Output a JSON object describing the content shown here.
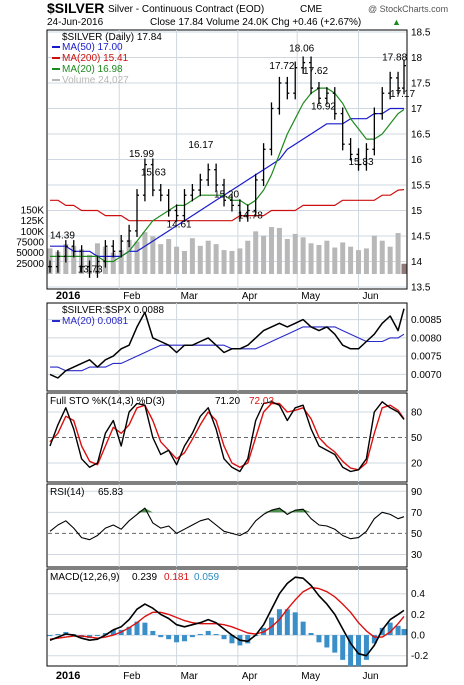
{
  "header": {
    "symbol": "$SILVER",
    "name": "Silver - Continuous Contract (EOD)",
    "exchange": "CME",
    "watermark": "@ StockCharts.com",
    "date": "24-Jun-2016",
    "stats": "Close 17.84  Volume 24.0K  Chg +0.46 (+2.67%)",
    "stats_arrow": "▲"
  },
  "colors": {
    "price": "#000000",
    "ma50": "#1a1acc",
    "ma200": "#cc1010",
    "ma20": "#1f8a1f",
    "volume": "#b8b8b8",
    "ratio": "#000000",
    "ratio_ma": "#2a2ac8",
    "sto_k": "#000000",
    "sto_d": "#dd1010",
    "rsi": "#000000",
    "rsi_fill": "#2e7d2e",
    "macd": "#000000",
    "signal": "#dd1010",
    "hist": "#3a8fc8",
    "grid": "#cfd8e0"
  },
  "chart_data": {
    "type": "line",
    "x_months": [
      "2016",
      "Feb",
      "Mar",
      "Apr",
      "May",
      "Jun"
    ],
    "dates": [
      "2015-12-28",
      "2016-01-01",
      "2016-01-05",
      "2016-01-09",
      "2016-01-13",
      "2016-01-17",
      "2016-01-21",
      "2016-01-25",
      "2016-01-29",
      "2016-02-02",
      "2016-02-06",
      "2016-02-10",
      "2016-02-14",
      "2016-02-18",
      "2016-02-22",
      "2016-02-26",
      "2016-03-01",
      "2016-03-05",
      "2016-03-09",
      "2016-03-13",
      "2016-03-17",
      "2016-03-21",
      "2016-03-25",
      "2016-03-29",
      "2016-04-02",
      "2016-04-06",
      "2016-04-10",
      "2016-04-14",
      "2016-04-18",
      "2016-04-22",
      "2016-04-26",
      "2016-04-30",
      "2016-05-04",
      "2016-05-08",
      "2016-05-12",
      "2016-05-16",
      "2016-05-20",
      "2016-05-24",
      "2016-05-28",
      "2016-06-01",
      "2016-06-05",
      "2016-06-09",
      "2016-06-13",
      "2016-06-17",
      "2016-06-21",
      "2016-06-24"
    ],
    "price_panel": {
      "title": "$SILVER (Daily) 17.84",
      "ylim": [
        13.5,
        18.5
      ],
      "yticks": [
        13.5,
        14.0,
        14.5,
        15.0,
        15.5,
        16.0,
        16.5,
        17.0,
        17.5,
        18.0,
        18.5
      ],
      "close": [
        13.9,
        14.1,
        14.3,
        14.2,
        13.9,
        13.8,
        14.0,
        14.3,
        14.2,
        14.4,
        14.6,
        15.3,
        15.9,
        15.4,
        15.3,
        15.0,
        14.9,
        15.3,
        15.4,
        15.6,
        15.8,
        15.5,
        15.2,
        15.1,
        14.9,
        15.0,
        15.6,
        16.2,
        17.0,
        17.5,
        17.3,
        17.8,
        17.9,
        17.4,
        17.2,
        17.3,
        16.9,
        16.3,
        16.1,
        15.9,
        16.2,
        16.9,
        17.3,
        17.6,
        17.4,
        17.84
      ],
      "annotations": [
        {
          "label": "14.39",
          "x": "2016-01-02",
          "y": 14.39
        },
        {
          "label": "13.73",
          "x": "2016-01-16",
          "y": 13.73
        },
        {
          "label": "15.99",
          "x": "2016-02-11",
          "y": 15.99
        },
        {
          "label": "15.63",
          "x": "2016-02-17",
          "y": 15.63
        },
        {
          "label": "14.61",
          "x": "2016-03-01",
          "y": 14.61
        },
        {
          "label": "16.17",
          "x": "2016-03-12",
          "y": 16.17
        },
        {
          "label": "15.20",
          "x": "2016-03-25",
          "y": 15.2
        },
        {
          "label": "14.78",
          "x": "2016-04-06",
          "y": 14.78
        },
        {
          "label": "17.72",
          "x": "2016-04-22",
          "y": 17.72
        },
        {
          "label": "18.06",
          "x": "2016-05-02",
          "y": 18.06
        },
        {
          "label": "17.62",
          "x": "2016-05-09",
          "y": 17.62
        },
        {
          "label": "16.92",
          "x": "2016-05-13",
          "y": 16.92
        },
        {
          "label": "15.83",
          "x": "2016-06-01",
          "y": 15.83
        },
        {
          "label": "17.88",
          "x": "2016-06-18",
          "y": 17.88
        },
        {
          "label": "17.17",
          "x": "2016-06-22",
          "y": 17.17
        }
      ],
      "legend": [
        {
          "label": "MA(50) 17.00",
          "color": "#1a1acc"
        },
        {
          "label": "MA(200) 15.41",
          "color": "#cc1010"
        },
        {
          "label": "MA(20) 16.98",
          "color": "#1f8a1f"
        },
        {
          "label": "Volume 24,027",
          "color": "#b8b8b8"
        }
      ],
      "ma50": [
        14.3,
        14.3,
        14.3,
        14.2,
        14.2,
        14.2,
        14.1,
        14.1,
        14.1,
        14.1,
        14.2,
        14.2,
        14.3,
        14.4,
        14.5,
        14.6,
        14.7,
        14.8,
        14.9,
        15.0,
        15.1,
        15.2,
        15.3,
        15.4,
        15.5,
        15.6,
        15.7,
        15.8,
        15.9,
        16.0,
        16.2,
        16.3,
        16.4,
        16.5,
        16.6,
        16.7,
        16.7,
        16.7,
        16.8,
        16.8,
        16.8,
        16.9,
        16.9,
        17.0,
        17.0,
        17.0
      ],
      "ma200": [
        15.2,
        15.2,
        15.1,
        15.1,
        15.0,
        15.0,
        15.0,
        14.9,
        14.9,
        14.9,
        14.8,
        14.8,
        14.8,
        14.8,
        14.8,
        14.8,
        14.8,
        14.8,
        14.8,
        14.8,
        14.8,
        14.8,
        14.8,
        14.8,
        14.9,
        14.9,
        14.9,
        14.9,
        15.0,
        15.0,
        15.0,
        15.0,
        15.1,
        15.1,
        15.1,
        15.1,
        15.1,
        15.2,
        15.2,
        15.2,
        15.2,
        15.2,
        15.3,
        15.3,
        15.4,
        15.41
      ],
      "ma20": [
        14.1,
        14.1,
        14.1,
        14.1,
        14.1,
        14.1,
        14.1,
        14.0,
        14.0,
        14.1,
        14.2,
        14.4,
        14.6,
        14.8,
        14.9,
        15.0,
        15.1,
        15.1,
        15.2,
        15.3,
        15.3,
        15.3,
        15.3,
        15.2,
        15.2,
        15.1,
        15.2,
        15.4,
        15.7,
        16.1,
        16.5,
        16.8,
        17.1,
        17.3,
        17.4,
        17.4,
        17.3,
        17.1,
        16.8,
        16.6,
        16.4,
        16.4,
        16.5,
        16.7,
        16.9,
        16.98
      ],
      "volume_scale": {
        "ylim": [
          0,
          150000
        ],
        "yticks_labels": [
          "150K",
          "125K",
          "100K",
          "75000",
          "50000",
          "25000"
        ],
        "yticks": [
          150000,
          125000,
          100000,
          75000,
          50000,
          25000
        ]
      },
      "volume": [
        60000,
        52000,
        70000,
        66000,
        58000,
        45000,
        72000,
        64000,
        50000,
        56000,
        80000,
        76000,
        98000,
        88000,
        70000,
        82000,
        64000,
        54000,
        84000,
        66000,
        78000,
        70000,
        56000,
        54000,
        60000,
        78000,
        100000,
        90000,
        110000,
        108000,
        82000,
        94000,
        86000,
        72000,
        68000,
        78000,
        62000,
        74000,
        64000,
        56000,
        60000,
        90000,
        78000,
        64000,
        96000,
        24027
      ]
    },
    "ratio_panel": {
      "title": "$SILVER:$SPX 0.0088",
      "legend": [
        {
          "label": "MA(20) 0.0081",
          "color": "#2a2ac8"
        }
      ],
      "ylim": [
        0.0066,
        0.0089
      ],
      "yticks": [
        0.007,
        0.0075,
        0.008,
        0.0085
      ],
      "ytick_labels": [
        "0.0070",
        "0.0075",
        "0.0080",
        "0.0085"
      ],
      "values": [
        0.007,
        0.0069,
        0.0071,
        0.0072,
        0.0073,
        0.0074,
        0.0072,
        0.0074,
        0.0075,
        0.0077,
        0.0078,
        0.0083,
        0.0087,
        0.008,
        0.0079,
        0.0078,
        0.0076,
        0.0078,
        0.0078,
        0.0079,
        0.008,
        0.0078,
        0.0076,
        0.0077,
        0.0077,
        0.0078,
        0.008,
        0.0082,
        0.0083,
        0.0084,
        0.0083,
        0.0084,
        0.0085,
        0.0083,
        0.0082,
        0.0083,
        0.0081,
        0.0078,
        0.0077,
        0.0077,
        0.0079,
        0.0081,
        0.0084,
        0.0086,
        0.0082,
        0.0088
      ],
      "ma20": [
        0.0072,
        0.0072,
        0.0071,
        0.0071,
        0.0071,
        0.0072,
        0.0072,
        0.0072,
        0.0073,
        0.0073,
        0.0074,
        0.0075,
        0.0076,
        0.0077,
        0.0078,
        0.0078,
        0.0078,
        0.0078,
        0.0078,
        0.0078,
        0.0078,
        0.0078,
        0.0078,
        0.0077,
        0.0077,
        0.0077,
        0.0077,
        0.0078,
        0.0079,
        0.008,
        0.0081,
        0.0082,
        0.0083,
        0.0083,
        0.0083,
        0.0083,
        0.0083,
        0.0082,
        0.0081,
        0.008,
        0.0079,
        0.0079,
        0.0079,
        0.008,
        0.008,
        0.0081
      ]
    },
    "sto_panel": {
      "title": "Full STO %K(14,3) %D(3)",
      "k_value": "71.20",
      "d_value": "72.03",
      "ylim": [
        0,
        100
      ],
      "yticks": [
        20,
        50,
        80
      ],
      "k": [
        40,
        65,
        85,
        60,
        25,
        15,
        20,
        55,
        70,
        40,
        80,
        90,
        88,
        50,
        30,
        35,
        18,
        40,
        55,
        75,
        85,
        60,
        25,
        15,
        10,
        25,
        70,
        90,
        92,
        88,
        70,
        85,
        88,
        60,
        40,
        35,
        30,
        15,
        10,
        12,
        25,
        80,
        92,
        85,
        80,
        71.2
      ],
      "d": [
        45,
        55,
        75,
        70,
        40,
        22,
        18,
        40,
        62,
        55,
        65,
        85,
        88,
        70,
        45,
        35,
        25,
        32,
        48,
        65,
        80,
        70,
        40,
        20,
        15,
        20,
        50,
        80,
        90,
        90,
        80,
        82,
        85,
        72,
        50,
        40,
        33,
        22,
        14,
        12,
        20,
        55,
        85,
        88,
        82,
        72.03
      ]
    },
    "rsi_panel": {
      "title": "RSI(14)",
      "value": "65.83",
      "ylim": [
        20,
        95
      ],
      "yticks": [
        30,
        50,
        70,
        90
      ],
      "values": [
        52,
        58,
        62,
        55,
        46,
        44,
        48,
        55,
        58,
        54,
        62,
        68,
        74,
        60,
        55,
        57,
        50,
        54,
        58,
        62,
        64,
        58,
        52,
        50,
        48,
        52,
        62,
        68,
        72,
        74,
        68,
        72,
        73,
        64,
        58,
        57,
        54,
        48,
        45,
        46,
        52,
        64,
        70,
        68,
        64,
        65.83
      ]
    },
    "macd_panel": {
      "title": "MACD(12,26,9)",
      "macd_value": "0.239",
      "signal_value": "0.181",
      "hist_value": "0.059",
      "ylim": [
        -0.28,
        0.62
      ],
      "yticks": [
        -0.2,
        0.0,
        0.2,
        0.4
      ],
      "ytick_labels": [
        "-0.2",
        "0.0",
        "0.2",
        "0.4"
      ],
      "macd": [
        -0.05,
        -0.02,
        0.01,
        0.0,
        -0.03,
        -0.05,
        -0.04,
        0.0,
        0.05,
        0.08,
        0.15,
        0.25,
        0.3,
        0.26,
        0.2,
        0.16,
        0.1,
        0.08,
        0.1,
        0.12,
        0.15,
        0.12,
        0.06,
        0.0,
        -0.05,
        -0.06,
        0.0,
        0.1,
        0.25,
        0.4,
        0.5,
        0.56,
        0.55,
        0.48,
        0.38,
        0.3,
        0.2,
        0.06,
        -0.08,
        -0.18,
        -0.2,
        -0.1,
        0.05,
        0.15,
        0.2,
        0.239
      ],
      "signal": [
        -0.04,
        -0.03,
        -0.02,
        -0.01,
        -0.01,
        -0.02,
        -0.03,
        -0.02,
        0.0,
        0.03,
        0.07,
        0.12,
        0.18,
        0.22,
        0.22,
        0.2,
        0.17,
        0.14,
        0.12,
        0.11,
        0.11,
        0.11,
        0.1,
        0.08,
        0.05,
        0.02,
        0.01,
        0.03,
        0.08,
        0.15,
        0.25,
        0.34,
        0.42,
        0.46,
        0.45,
        0.42,
        0.37,
        0.3,
        0.22,
        0.12,
        0.04,
        -0.02,
        -0.02,
        0.03,
        0.11,
        0.181
      ],
      "histogram": [
        -0.01,
        0.01,
        0.03,
        0.01,
        -0.02,
        -0.03,
        -0.01,
        0.02,
        0.05,
        0.05,
        0.08,
        0.13,
        0.12,
        0.04,
        -0.02,
        -0.04,
        -0.07,
        -0.06,
        -0.02,
        0.01,
        0.04,
        0.01,
        -0.04,
        -0.08,
        -0.1,
        -0.08,
        -0.01,
        0.07,
        0.17,
        0.25,
        0.25,
        0.22,
        0.13,
        0.02,
        -0.07,
        -0.12,
        -0.17,
        -0.24,
        -0.3,
        -0.3,
        -0.24,
        -0.08,
        0.07,
        0.12,
        0.09,
        0.059
      ]
    }
  }
}
